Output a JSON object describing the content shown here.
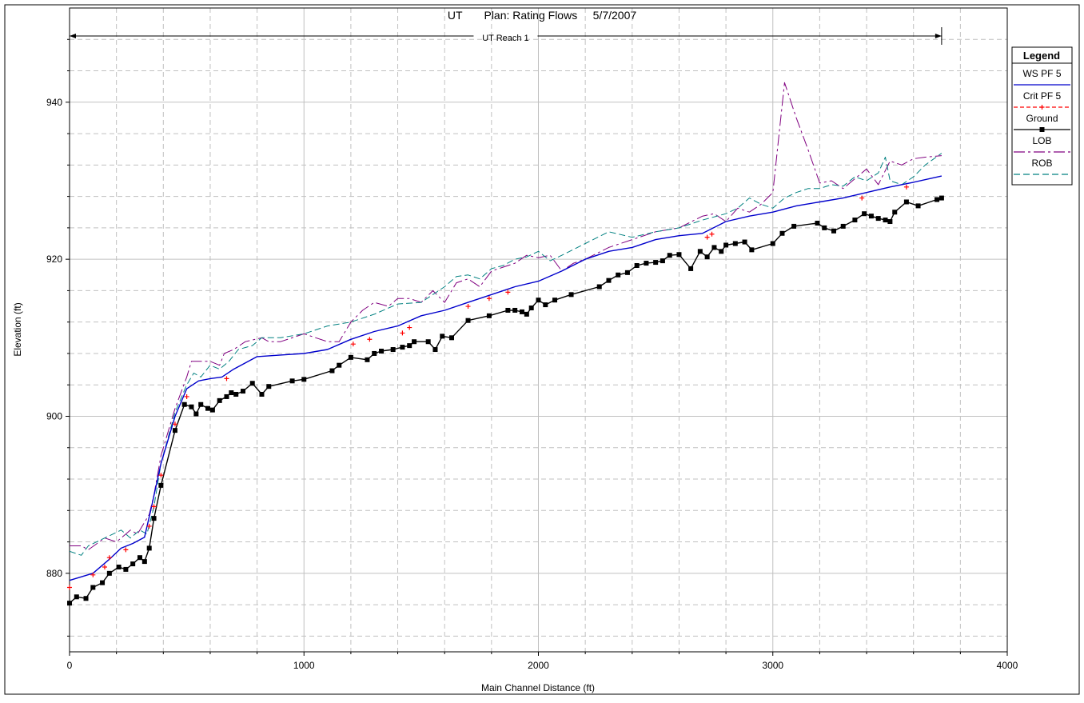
{
  "chart_data": {
    "type": "line",
    "title": "UT       Plan: Rating Flows     5/7/2007",
    "reach_label": "UT Reach 1",
    "reach_range": [
      0,
      3720
    ],
    "xlabel": "Main Channel Distance (ft)",
    "ylabel": "Elevation (ft)",
    "xlim": [
      0,
      4000
    ],
    "ylim": [
      870,
      952
    ],
    "x_ticks": [
      0,
      1000,
      2000,
      3000,
      4000
    ],
    "y_ticks": [
      880,
      900,
      920,
      940
    ],
    "grid": true,
    "legend_position": "right",
    "legend": {
      "title": "Legend",
      "entries": [
        "WS PF 5",
        "Crit PF 5",
        "Ground",
        "LOB",
        "ROB"
      ]
    },
    "colors": {
      "ws": "#0000cc",
      "crit": "#ff0000",
      "ground": "#000000",
      "lob": "#800080",
      "rob": "#008080",
      "grid": "#c0c0c0"
    },
    "series": [
      {
        "name": "WS PF 5",
        "style": "solid",
        "x": [
          0,
          100,
          170,
          220,
          270,
          320,
          350,
          390,
          450,
          500,
          550,
          600,
          650,
          700,
          800,
          900,
          1000,
          1100,
          1200,
          1300,
          1400,
          1500,
          1600,
          1700,
          1800,
          1900,
          2000,
          2100,
          2200,
          2300,
          2400,
          2500,
          2600,
          2700,
          2800,
          2900,
          3000,
          3100,
          3200,
          3300,
          3400,
          3500,
          3600,
          3720
        ],
        "y": [
          879.1,
          880.0,
          881.8,
          883.2,
          883.8,
          884.6,
          888.5,
          894.0,
          900.0,
          903.5,
          904.5,
          904.8,
          905.0,
          906.0,
          907.6,
          907.8,
          908.0,
          908.5,
          909.8,
          910.8,
          911.5,
          912.8,
          913.5,
          914.5,
          915.5,
          916.5,
          917.2,
          918.5,
          920.0,
          921.0,
          921.5,
          922.5,
          923.0,
          923.3,
          924.8,
          925.5,
          926.0,
          926.8,
          927.3,
          927.8,
          928.5,
          929.2,
          929.8,
          930.6
        ]
      },
      {
        "name": "Crit PF 5",
        "style": "dashed",
        "x": [
          0,
          100,
          150,
          170,
          240,
          340,
          360,
          390,
          450,
          500,
          670,
          1210,
          1280,
          1420,
          1450,
          1700,
          1790,
          1870,
          2720,
          2740,
          3380,
          3570
        ],
        "y": [
          878.2,
          879.8,
          880.8,
          882.0,
          883.0,
          886.0,
          888.5,
          892.5,
          899.0,
          902.5,
          904.8,
          909.2,
          909.8,
          910.6,
          911.3,
          914.0,
          915.0,
          915.8,
          922.8,
          923.2,
          927.8,
          929.2
        ]
      },
      {
        "name": "Ground",
        "style": "solid",
        "x": [
          0,
          30,
          70,
          100,
          140,
          170,
          210,
          240,
          270,
          300,
          320,
          340,
          360,
          390,
          450,
          490,
          520,
          540,
          560,
          590,
          610,
          640,
          670,
          690,
          710,
          740,
          780,
          820,
          850,
          950,
          1000,
          1120,
          1150,
          1200,
          1270,
          1300,
          1330,
          1380,
          1420,
          1450,
          1470,
          1530,
          1560,
          1590,
          1630,
          1700,
          1790,
          1870,
          1900,
          1930,
          1950,
          1970,
          2000,
          2030,
          2070,
          2140,
          2260,
          2300,
          2340,
          2380,
          2420,
          2460,
          2500,
          2530,
          2560,
          2600,
          2650,
          2690,
          2720,
          2750,
          2780,
          2800,
          2840,
          2880,
          2910,
          3000,
          3040,
          3090,
          3190,
          3220,
          3260,
          3300,
          3350,
          3390,
          3420,
          3450,
          3480,
          3500,
          3520,
          3570,
          3620,
          3700,
          3720
        ],
        "y": [
          876.2,
          877.0,
          876.8,
          878.2,
          878.8,
          880.0,
          880.8,
          880.5,
          881.2,
          882.0,
          881.5,
          883.2,
          887.0,
          891.2,
          898.2,
          901.5,
          901.2,
          900.3,
          901.5,
          901.0,
          900.8,
          902.0,
          902.5,
          903.0,
          902.8,
          903.2,
          904.2,
          902.8,
          903.8,
          904.5,
          904.7,
          905.8,
          906.5,
          907.5,
          907.2,
          908.0,
          908.3,
          908.5,
          908.8,
          909.0,
          909.5,
          909.5,
          908.5,
          910.2,
          910.0,
          912.2,
          912.8,
          913.5,
          913.5,
          913.3,
          913.0,
          913.8,
          914.8,
          914.2,
          914.8,
          915.5,
          916.5,
          917.3,
          918.0,
          918.3,
          919.2,
          919.5,
          919.6,
          919.8,
          920.5,
          920.6,
          918.8,
          921.0,
          920.3,
          921.5,
          921.0,
          921.8,
          922.0,
          922.2,
          921.2,
          922.0,
          923.3,
          924.2,
          924.6,
          924.0,
          923.6,
          924.2,
          925.0,
          925.8,
          925.5,
          925.2,
          925.0,
          924.8,
          926.0,
          927.3,
          926.8,
          927.6,
          927.8
        ]
      },
      {
        "name": "LOB",
        "style": "dashdot",
        "x": [
          0,
          50,
          80,
          150,
          200,
          260,
          290,
          310,
          340,
          360,
          390,
          450,
          500,
          520,
          560,
          600,
          640,
          660,
          700,
          750,
          820,
          850,
          900,
          1000,
          1050,
          1100,
          1150,
          1200,
          1250,
          1300,
          1360,
          1400,
          1450,
          1500,
          1550,
          1600,
          1650,
          1700,
          1750,
          1800,
          1850,
          1900,
          1950,
          2000,
          2050,
          2100,
          2150,
          2200,
          2300,
          2400,
          2500,
          2600,
          2700,
          2750,
          2800,
          2850,
          2900,
          2950,
          3000,
          3050,
          3100,
          3150,
          3200,
          3250,
          3300,
          3400,
          3450,
          3500,
          3550,
          3600,
          3650,
          3720
        ],
        "y": [
          883.5,
          883.5,
          883.0,
          884.5,
          884.0,
          885.5,
          885.0,
          886.0,
          887.5,
          890.0,
          895.0,
          901.0,
          905.0,
          907.0,
          907.0,
          907.0,
          906.5,
          908.0,
          908.5,
          909.5,
          910.0,
          909.5,
          909.5,
          910.5,
          910.0,
          909.5,
          909.5,
          912.0,
          913.5,
          914.5,
          914.0,
          915.0,
          915.0,
          914.5,
          916.0,
          914.5,
          917.0,
          917.5,
          916.5,
          918.5,
          919.0,
          919.5,
          920.5,
          920.2,
          920.5,
          918.5,
          919.5,
          920.0,
          921.5,
          922.5,
          923.5,
          924.0,
          925.5,
          925.8,
          924.8,
          926.5,
          926.0,
          927.0,
          928.5,
          942.5,
          938.0,
          934.0,
          929.7,
          930.0,
          929.0,
          931.5,
          929.5,
          932.5,
          932.0,
          932.8,
          933.0,
          933.2
        ]
      },
      {
        "name": "ROB",
        "style": "dashed",
        "x": [
          0,
          50,
          80,
          150,
          220,
          260,
          300,
          330,
          360,
          390,
          450,
          500,
          530,
          560,
          600,
          640,
          680,
          720,
          780,
          820,
          900,
          1000,
          1050,
          1100,
          1200,
          1300,
          1400,
          1500,
          1550,
          1600,
          1650,
          1700,
          1750,
          1800,
          1850,
          1900,
          1950,
          2000,
          2050,
          2100,
          2200,
          2300,
          2400,
          2500,
          2600,
          2700,
          2800,
          2850,
          2900,
          2950,
          3000,
          3050,
          3100,
          3150,
          3200,
          3250,
          3300,
          3350,
          3400,
          3450,
          3480,
          3500,
          3550,
          3600,
          3650,
          3720
        ],
        "y": [
          882.8,
          882.3,
          883.5,
          884.5,
          885.5,
          884.5,
          885.5,
          885.0,
          888.5,
          894.0,
          900.5,
          904.0,
          905.5,
          905.0,
          906.5,
          906.0,
          907.0,
          908.5,
          909.0,
          910.0,
          910.0,
          910.5,
          911.0,
          911.5,
          912.0,
          913.0,
          914.3,
          914.5,
          915.5,
          916.5,
          917.8,
          918.0,
          917.5,
          918.8,
          919.2,
          920.0,
          920.3,
          921.0,
          919.8,
          920.5,
          922.0,
          923.5,
          922.8,
          923.5,
          924.0,
          925.0,
          925.8,
          926.5,
          927.8,
          927.0,
          926.5,
          927.8,
          928.5,
          929.0,
          929.0,
          929.5,
          929.3,
          930.5,
          930.0,
          931.0,
          933.0,
          930.0,
          929.5,
          930.5,
          932.0,
          933.5
        ]
      }
    ]
  }
}
